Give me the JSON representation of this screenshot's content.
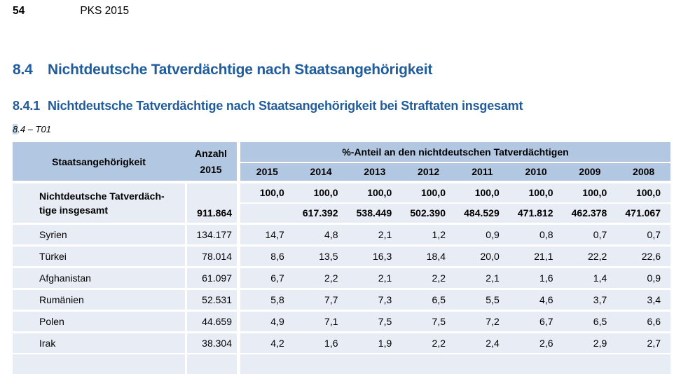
{
  "page": {
    "number": "54",
    "header": "PKS 2015"
  },
  "headings": {
    "h1_num": "8.4",
    "h1_text": "Nichtdeutsche Tatverdächtige nach Staatsangehörigkeit",
    "h2_num": "8.4.1",
    "h2_text": "Nichtdeutsche Tatverdächtige nach Staatsangehörigkeit bei Straftaten insgesamt",
    "table_ref_hl": "8",
    "table_ref_rest": ".4 – T01"
  },
  "table": {
    "col_headers": {
      "staatsangehoerigkeit": "Staatsangehörigkeit",
      "anzahl_line1": "Anzahl",
      "anzahl_line2": "2015",
      "pct_group": "%-Anteil an den nichtdeutschen Tatverdächtigen",
      "years": [
        "2015",
        "2014",
        "2013",
        "2012",
        "2011",
        "2010",
        "2009",
        "2008"
      ]
    },
    "totals": {
      "label_line1": "Nichtdeutsche Tatverdäch-",
      "label_line2": "tige insgesamt",
      "anzahl": "911.864",
      "pct": [
        "100,0",
        "100,0",
        "100,0",
        "100,0",
        "100,0",
        "100,0",
        "100,0",
        "100,0"
      ],
      "abs": [
        "",
        "617.392",
        "538.449",
        "502.390",
        "484.529",
        "471.812",
        "462.378",
        "471.067"
      ]
    },
    "rows": [
      {
        "label": "Syrien",
        "anzahl": "134.177",
        "pct": [
          "14,7",
          "4,8",
          "2,1",
          "1,2",
          "0,9",
          "0,8",
          "0,7",
          "0,7"
        ]
      },
      {
        "label": "Türkei",
        "anzahl": "78.014",
        "pct": [
          "8,6",
          "13,5",
          "16,3",
          "18,4",
          "20,0",
          "21,1",
          "22,2",
          "22,6"
        ]
      },
      {
        "label": "Afghanistan",
        "anzahl": "61.097",
        "pct": [
          "6,7",
          "2,2",
          "2,1",
          "2,2",
          "2,1",
          "1,6",
          "1,4",
          "0,9"
        ]
      },
      {
        "label": "Rumänien",
        "anzahl": "52.531",
        "pct": [
          "5,8",
          "7,7",
          "7,3",
          "6,5",
          "5,5",
          "4,6",
          "3,7",
          "3,4"
        ]
      },
      {
        "label": "Polen",
        "anzahl": "44.659",
        "pct": [
          "4,9",
          "7,1",
          "7,5",
          "7,5",
          "7,2",
          "6,7",
          "6,5",
          "6,6"
        ]
      },
      {
        "label": "Irak",
        "anzahl": "38.304",
        "pct": [
          "4,2",
          "1,6",
          "1,9",
          "2,2",
          "2,4",
          "2,6",
          "2,9",
          "2,7"
        ]
      }
    ],
    "colors": {
      "header_bg": "#b2c7e1",
      "row_bg": "#e7ecf5",
      "heading_blue": "#215d9c",
      "ref_highlight": "#c3d6ea"
    }
  }
}
